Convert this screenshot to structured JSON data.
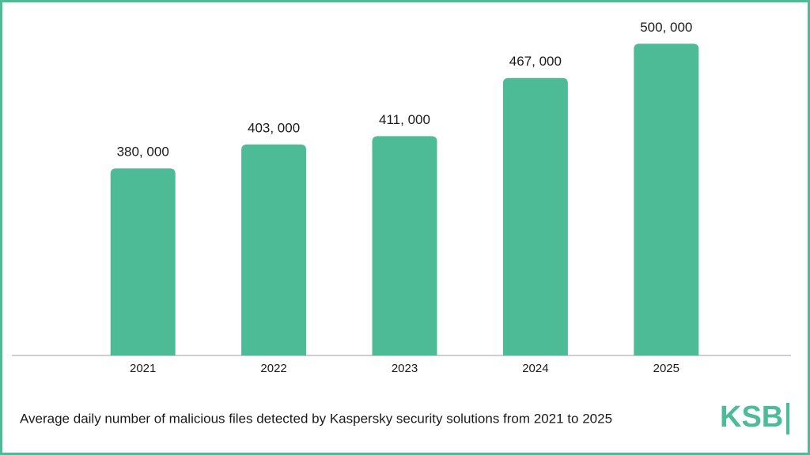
{
  "chart_data": {
    "type": "bar",
    "categories": [
      "2021",
      "2022",
      "2023",
      "2024",
      "2025"
    ],
    "values": [
      380000,
      403000,
      411000,
      467000,
      500000
    ],
    "value_labels": [
      "380, 000",
      "403, 000",
      "411, 000",
      "467, 000",
      "500, 000"
    ],
    "color": "#4dbb96",
    "ylim": [
      200000,
      520000
    ],
    "caption": "Average daily number of malicious files detected by Kaspersky security solutions from 2021 to 2025",
    "logo": "KSB"
  }
}
